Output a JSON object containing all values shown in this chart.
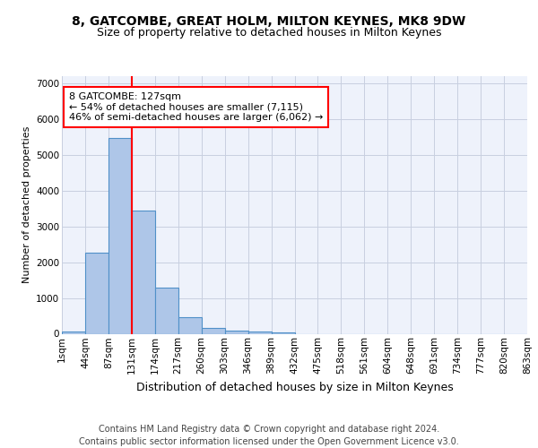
{
  "title1": "8, GATCOMBE, GREAT HOLM, MILTON KEYNES, MK8 9DW",
  "title2": "Size of property relative to detached houses in Milton Keynes",
  "xlabel": "Distribution of detached houses by size in Milton Keynes",
  "ylabel": "Number of detached properties",
  "bin_labels": [
    "1sqm",
    "44sqm",
    "87sqm",
    "131sqm",
    "174sqm",
    "217sqm",
    "260sqm",
    "303sqm",
    "346sqm",
    "389sqm",
    "432sqm",
    "475sqm",
    "518sqm",
    "561sqm",
    "604sqm",
    "648sqm",
    "691sqm",
    "734sqm",
    "777sqm",
    "820sqm",
    "863sqm"
  ],
  "bar_heights": [
    75,
    2270,
    5480,
    3440,
    1300,
    460,
    155,
    90,
    60,
    40,
    0,
    0,
    0,
    0,
    0,
    0,
    0,
    0,
    0,
    0
  ],
  "bar_color": "#aec6e8",
  "bar_edge_color": "#5090c8",
  "vline_x": 3,
  "vline_color": "red",
  "annotation_text": "8 GATCOMBE: 127sqm\n← 54% of detached houses are smaller (7,115)\n46% of semi-detached houses are larger (6,062) →",
  "ylim": [
    0,
    7200
  ],
  "yticks": [
    0,
    1000,
    2000,
    3000,
    4000,
    5000,
    6000,
    7000
  ],
  "footer": "Contains HM Land Registry data © Crown copyright and database right 2024.\nContains public sector information licensed under the Open Government Licence v3.0.",
  "background_color": "#eef2fb",
  "grid_color": "#c8cfe0",
  "title1_fontsize": 10,
  "title2_fontsize": 9,
  "xlabel_fontsize": 9,
  "ylabel_fontsize": 8,
  "tick_fontsize": 7.5,
  "footer_fontsize": 7,
  "annotation_fontsize": 8
}
